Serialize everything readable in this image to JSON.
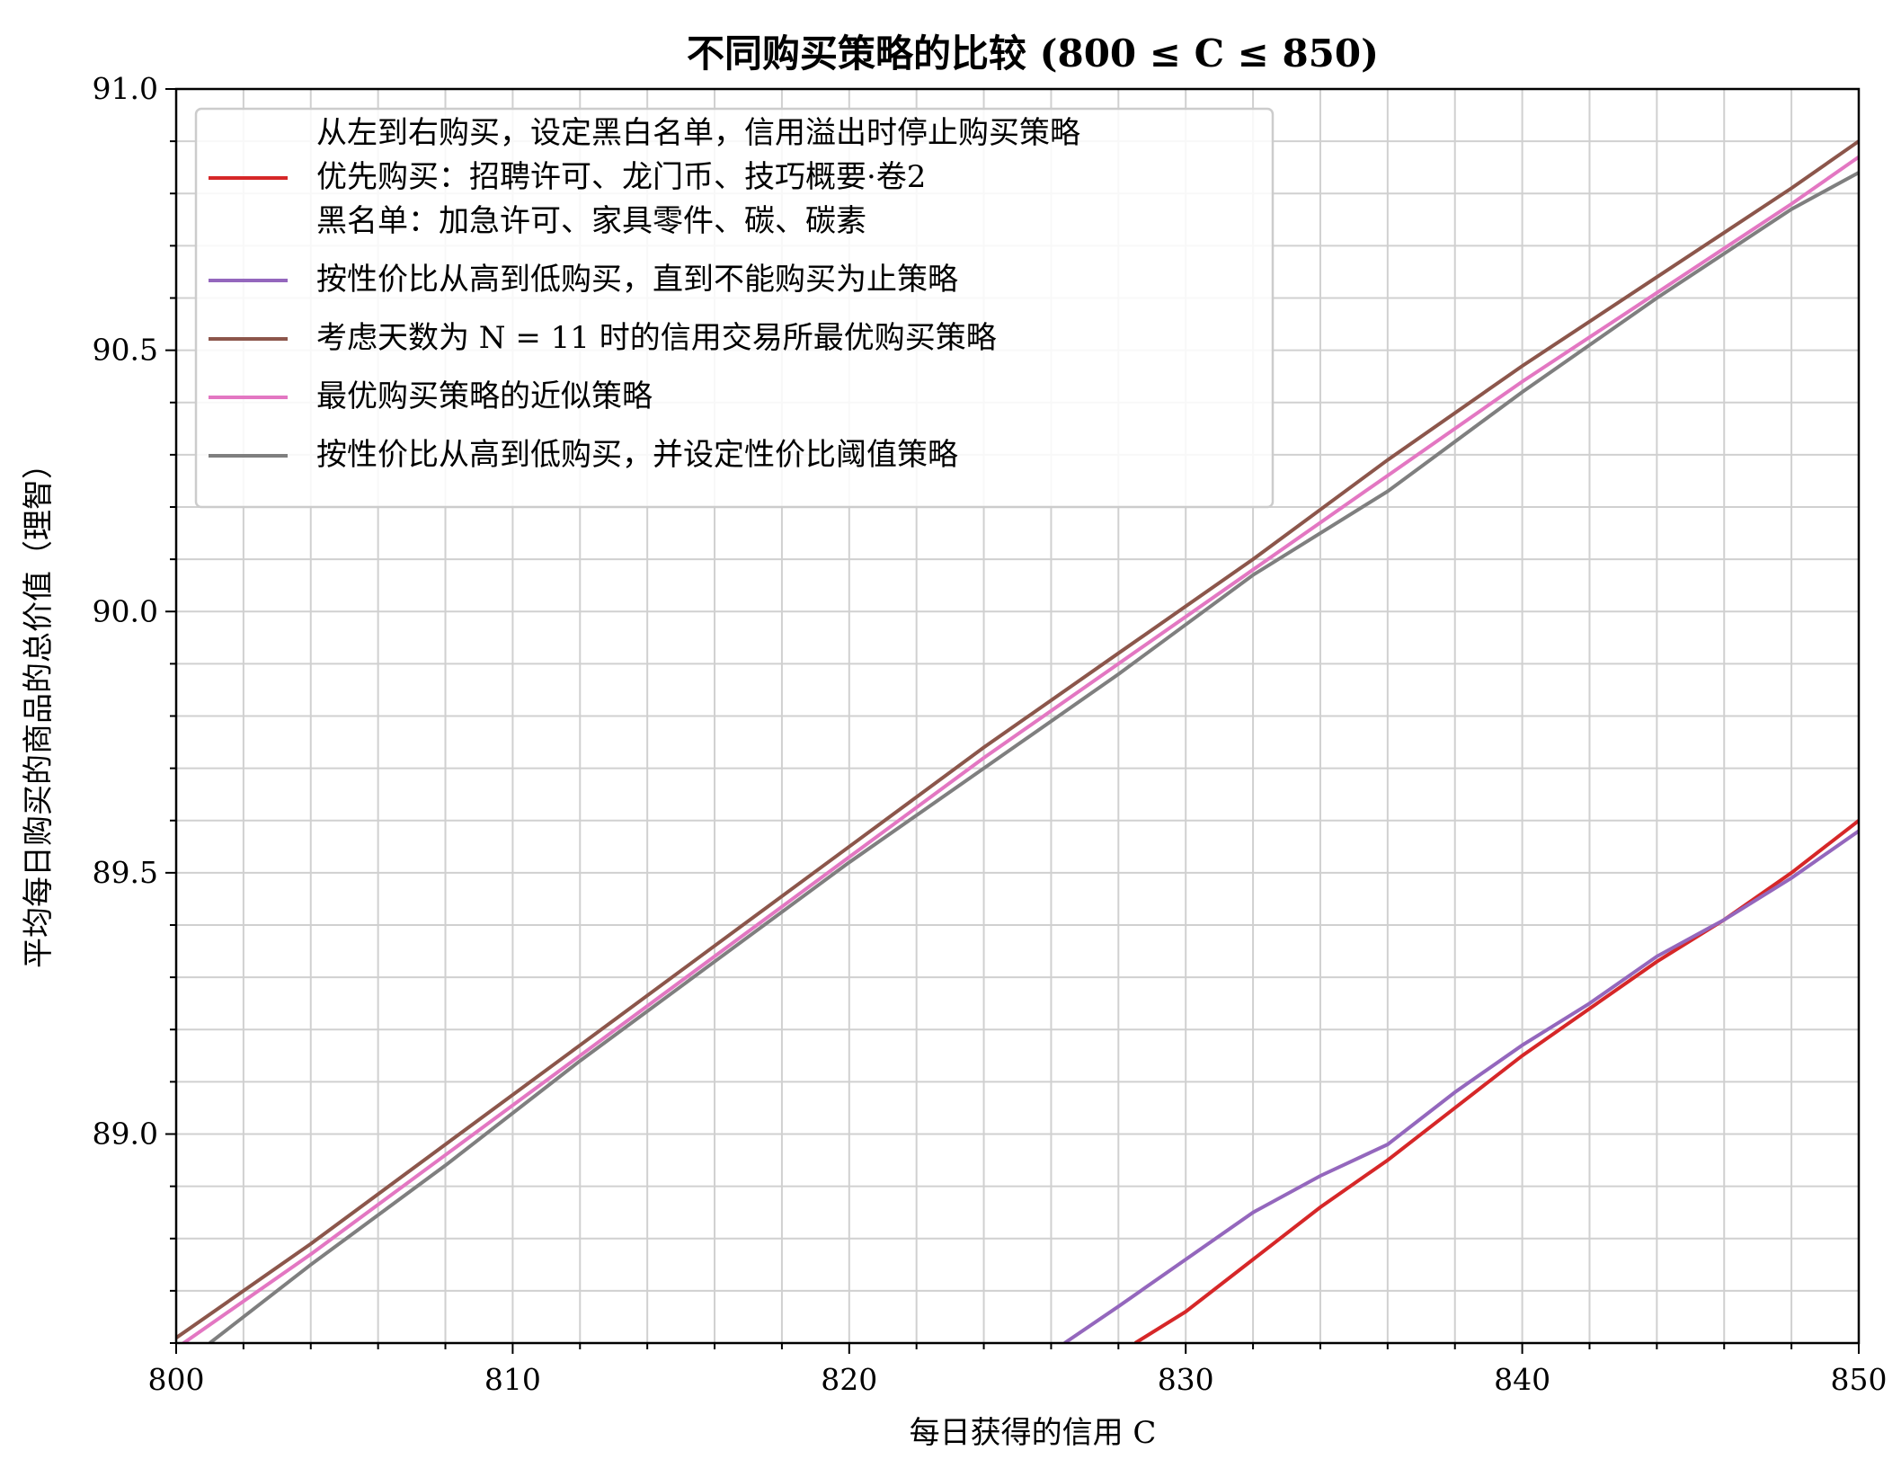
{
  "chart_data": {
    "type": "line",
    "title": "不同购买策略的比较 (800 ≤ C ≤ 850)",
    "xlabel": "每日获得的信用 C",
    "ylabel": "平均每日购买的商品的总价值（理智）",
    "xlim": [
      800,
      850
    ],
    "ylim": [
      88.6,
      91.0
    ],
    "xticks": [
      "800",
      "810",
      "820",
      "830",
      "840",
      "850"
    ],
    "yticks": [
      "89.0",
      "89.5",
      "90.0",
      "90.5",
      "91.0"
    ],
    "grid": true,
    "legend_position": "upper-left",
    "series": [
      {
        "name": "从左到右购买，设定黑白名单，信用溢出时停止购买策略\n优先购买：招聘许可、龙门币、技巧概要·卷2\n黑名单：加急许可、家具零件、碳、碳素",
        "color": "#d62728",
        "x": [
          828.5,
          830,
          832,
          834,
          836,
          838,
          840,
          842,
          844,
          846,
          848,
          850
        ],
        "y": [
          88.6,
          88.66,
          88.76,
          88.86,
          88.95,
          89.05,
          89.15,
          89.24,
          89.33,
          89.41,
          89.5,
          89.6
        ]
      },
      {
        "name": "按性价比从高到低购买，直到不能购买为止策略",
        "color": "#9467bd",
        "x": [
          826.4,
          828,
          830,
          832,
          834,
          836,
          838,
          840,
          842,
          844,
          846,
          848,
          850
        ],
        "y": [
          88.6,
          88.67,
          88.76,
          88.85,
          88.92,
          88.98,
          89.08,
          89.17,
          89.25,
          89.34,
          89.41,
          89.49,
          89.58
        ]
      },
      {
        "name": "考虑天数为 N = 11 时的信用交易所最优购买策略",
        "color": "#8c564b",
        "x": [
          800,
          804,
          808,
          812,
          816,
          820,
          824,
          828,
          832,
          836,
          840,
          844,
          848,
          850
        ],
        "y": [
          88.61,
          88.79,
          88.98,
          89.17,
          89.36,
          89.55,
          89.74,
          89.92,
          90.1,
          90.29,
          90.47,
          90.64,
          90.81,
          90.9
        ]
      },
      {
        "name": "最优购买策略的近似策略",
        "color": "#e377c2",
        "x": [
          800,
          804,
          808,
          812,
          816,
          820,
          824,
          828,
          832,
          836,
          840,
          844,
          848,
          850
        ],
        "y": [
          88.59,
          88.77,
          88.96,
          89.15,
          89.34,
          89.53,
          89.72,
          89.9,
          90.08,
          90.26,
          90.44,
          90.61,
          90.78,
          90.87
        ]
      },
      {
        "name": "按性价比从高到低购买，并设定性价比阈值策略",
        "color": "#7f7f7f",
        "x": [
          801,
          804,
          808,
          812,
          816,
          820,
          824,
          828,
          832,
          836,
          840,
          844,
          848,
          850
        ],
        "y": [
          88.6,
          88.75,
          88.94,
          89.14,
          89.33,
          89.52,
          89.7,
          89.88,
          90.07,
          90.23,
          90.42,
          90.6,
          90.77,
          90.84
        ]
      }
    ]
  }
}
